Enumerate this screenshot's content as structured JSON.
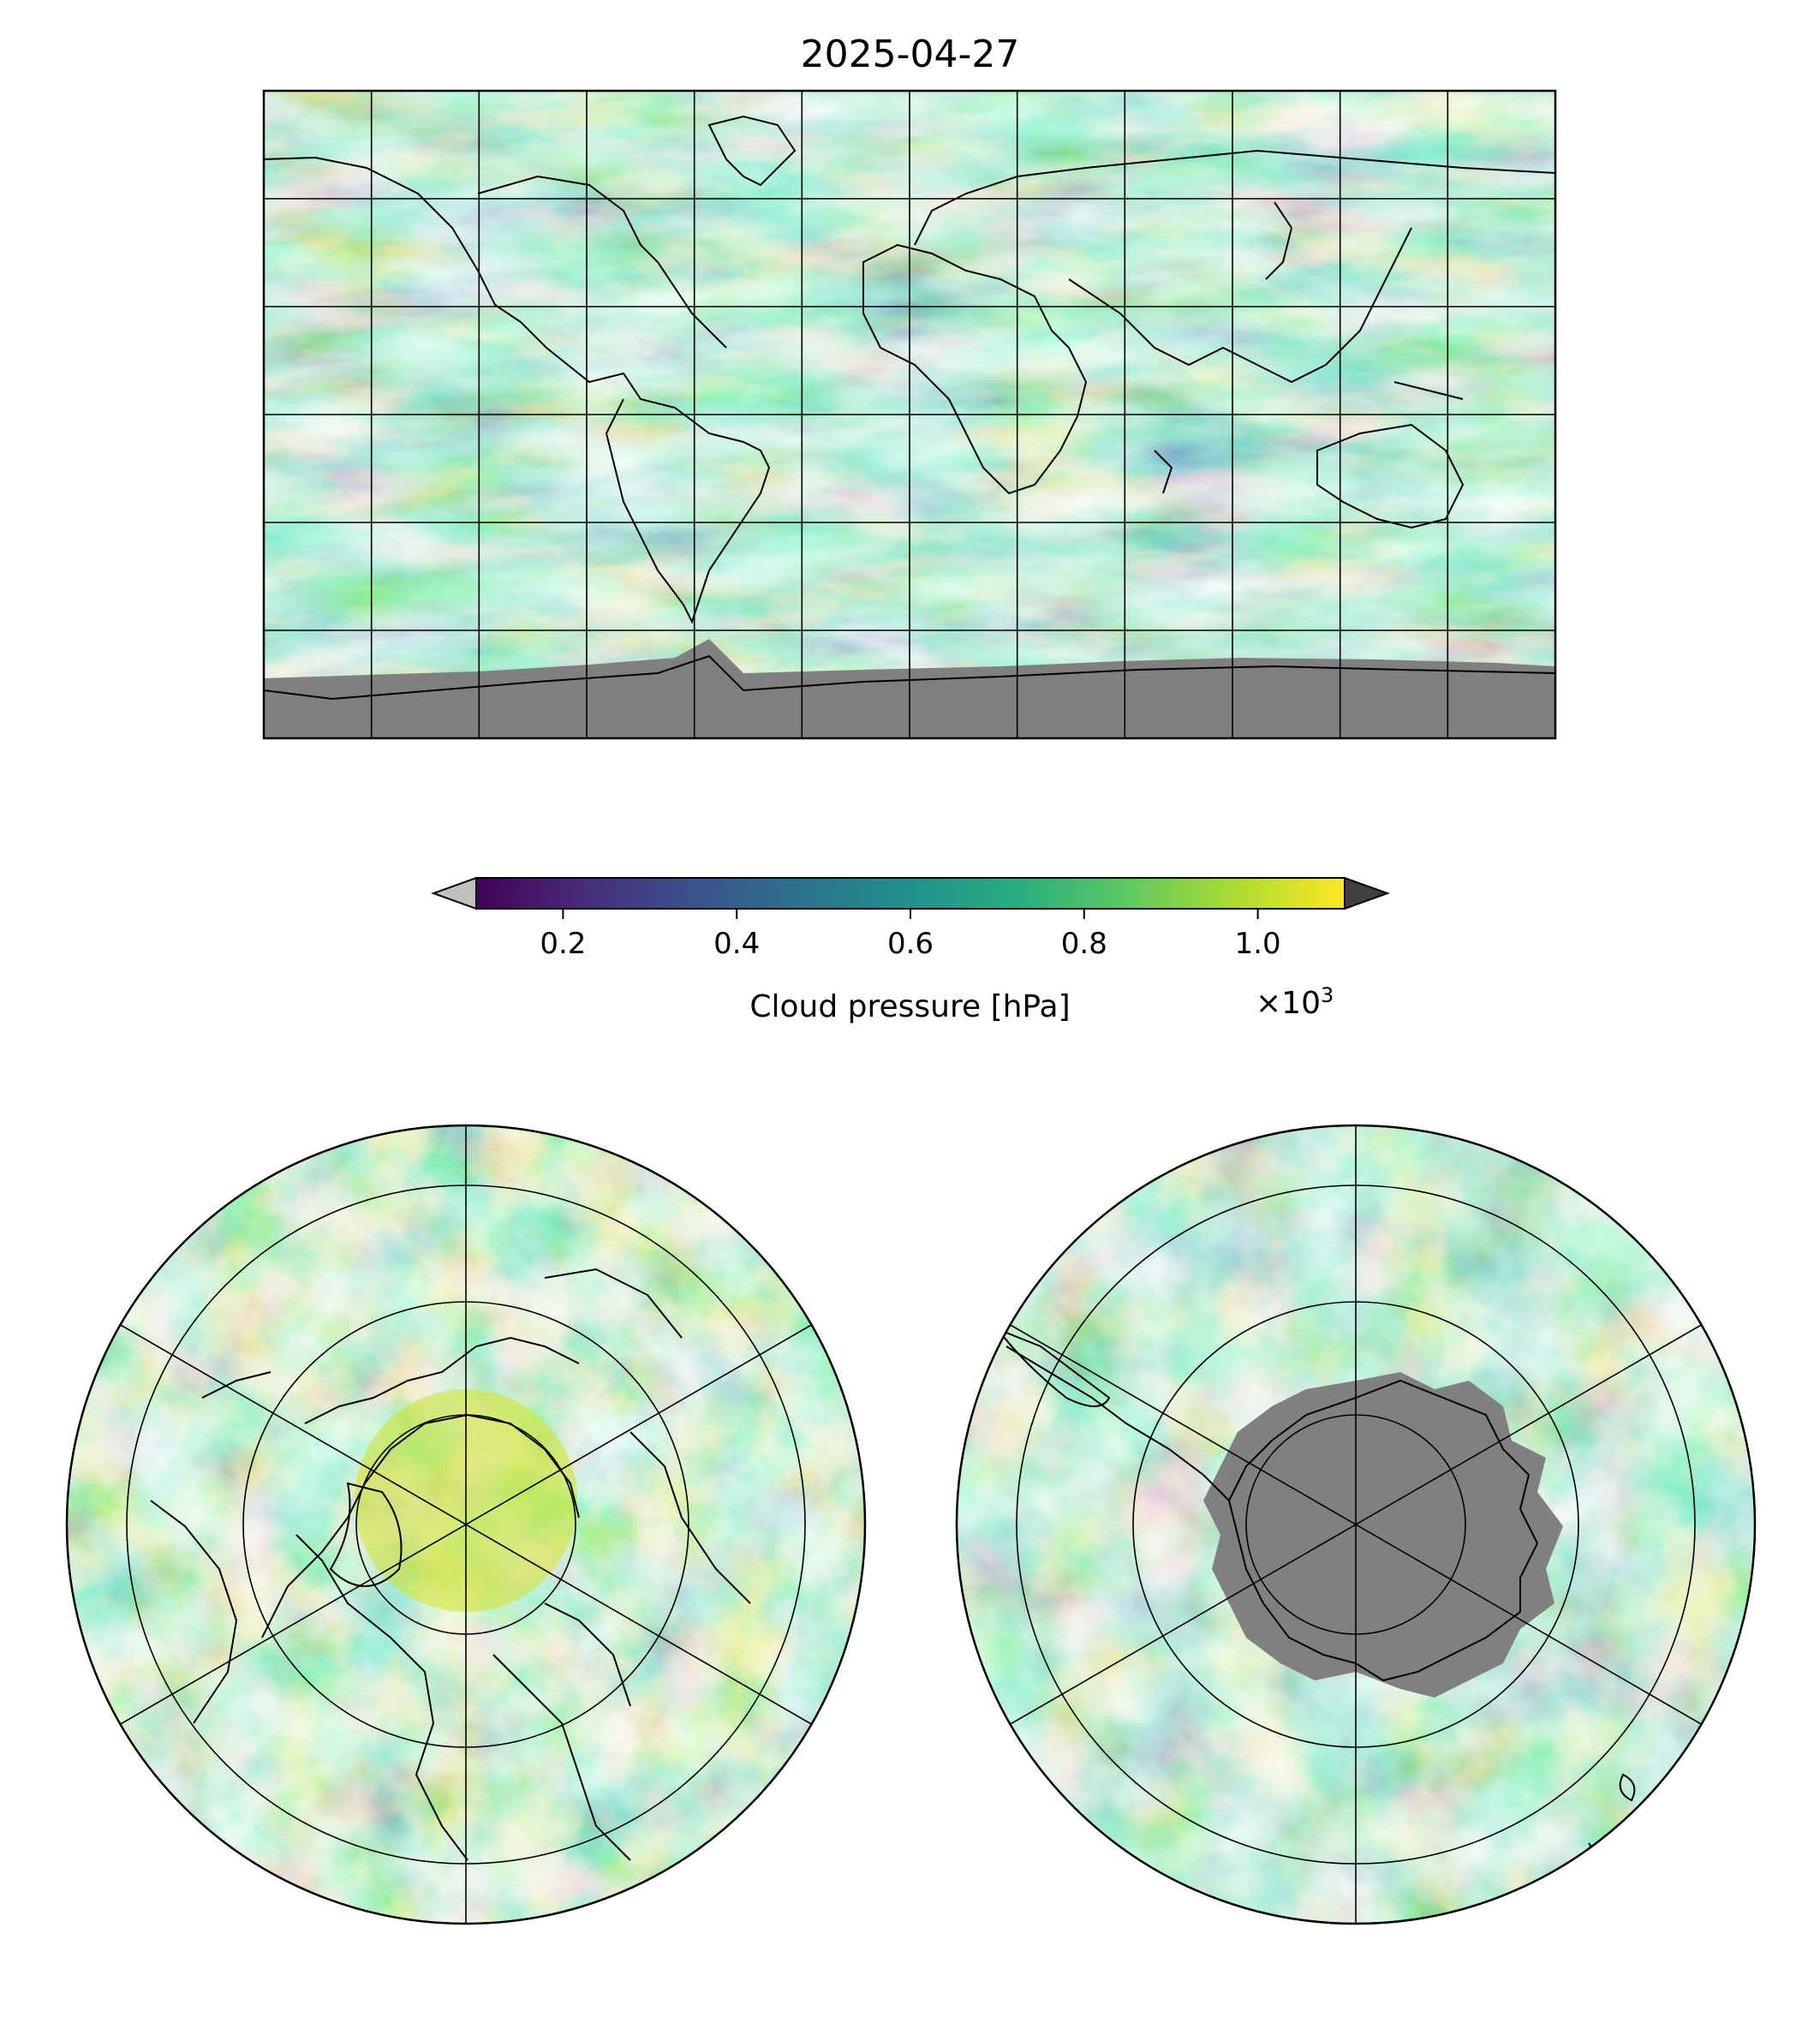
{
  "title": "2025-04-27",
  "colorbar": {
    "label": "Cloud pressure [hPa]",
    "multiplier": "×10",
    "exponent": "3",
    "ticks": [
      "0.2",
      "0.4",
      "0.6",
      "0.8",
      "1.0"
    ],
    "range": [
      0.1,
      1.1
    ],
    "tick_values": [
      0.2,
      0.4,
      0.6,
      0.8,
      1.0
    ],
    "under_color": "#c0c0c0",
    "over_color": "#404040",
    "colormap": "viridis"
  },
  "missing_color": "#808080",
  "panels": [
    {
      "name": "global",
      "projection": "plate-carree",
      "gridlines": "every 30 degrees"
    },
    {
      "name": "north-polar",
      "projection": "north-polar-stereographic",
      "gridlines": "circles every 15 degrees, meridians every 60 degrees"
    },
    {
      "name": "south-polar",
      "projection": "south-polar-stereographic",
      "gridlines": "circles every 15 degrees, meridians every 60 degrees"
    }
  ]
}
